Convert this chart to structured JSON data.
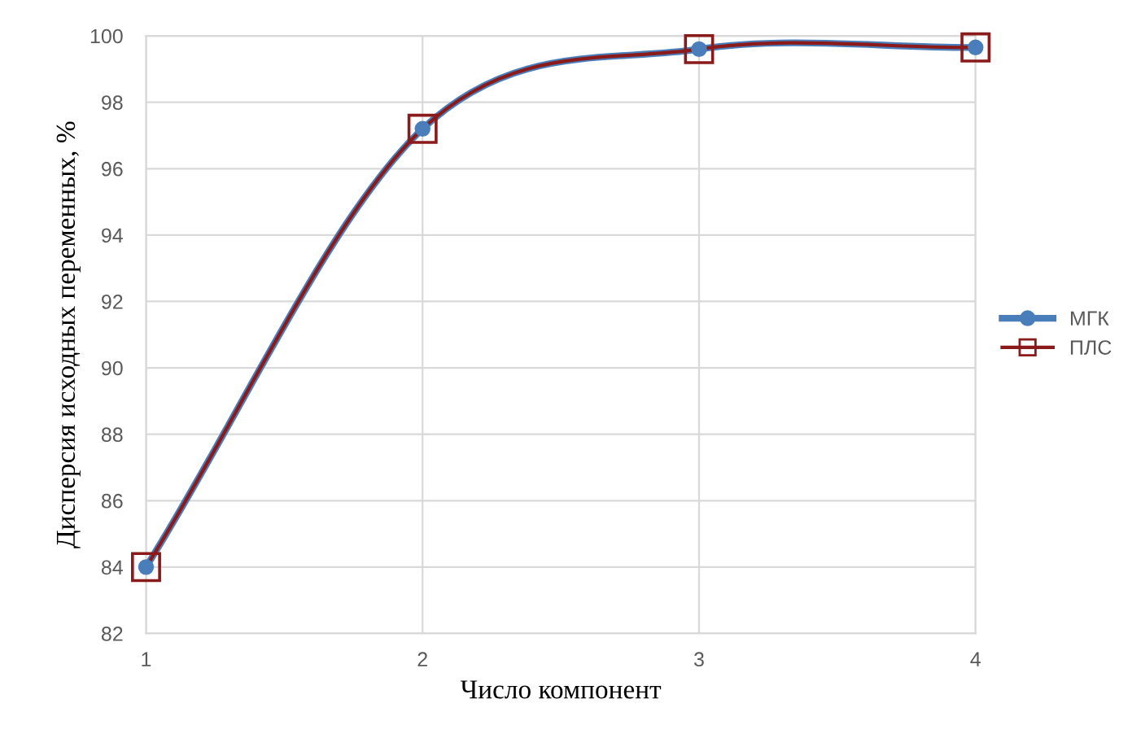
{
  "chart_data": {
    "type": "line",
    "xlabel": "Число компонент",
    "ylabel": "Дисперсия исходных переменных, %",
    "x": [
      1,
      2,
      3,
      4
    ],
    "series": [
      {
        "name": "МГК",
        "color": "#4a7ebb",
        "marker": "circle",
        "values": [
          84.0,
          97.2,
          99.6,
          99.65
        ]
      },
      {
        "name": "ПЛС",
        "color": "#8b1a1a",
        "marker": "square",
        "values": [
          84.0,
          97.2,
          99.6,
          99.65
        ]
      }
    ],
    "xlim": [
      1,
      4
    ],
    "xticks": [
      1,
      2,
      3,
      4
    ],
    "ylim": [
      82,
      100
    ],
    "yticks": [
      82,
      84,
      86,
      88,
      90,
      92,
      94,
      96,
      98,
      100
    ],
    "grid": true,
    "legend": "right",
    "line_style": "solid"
  }
}
